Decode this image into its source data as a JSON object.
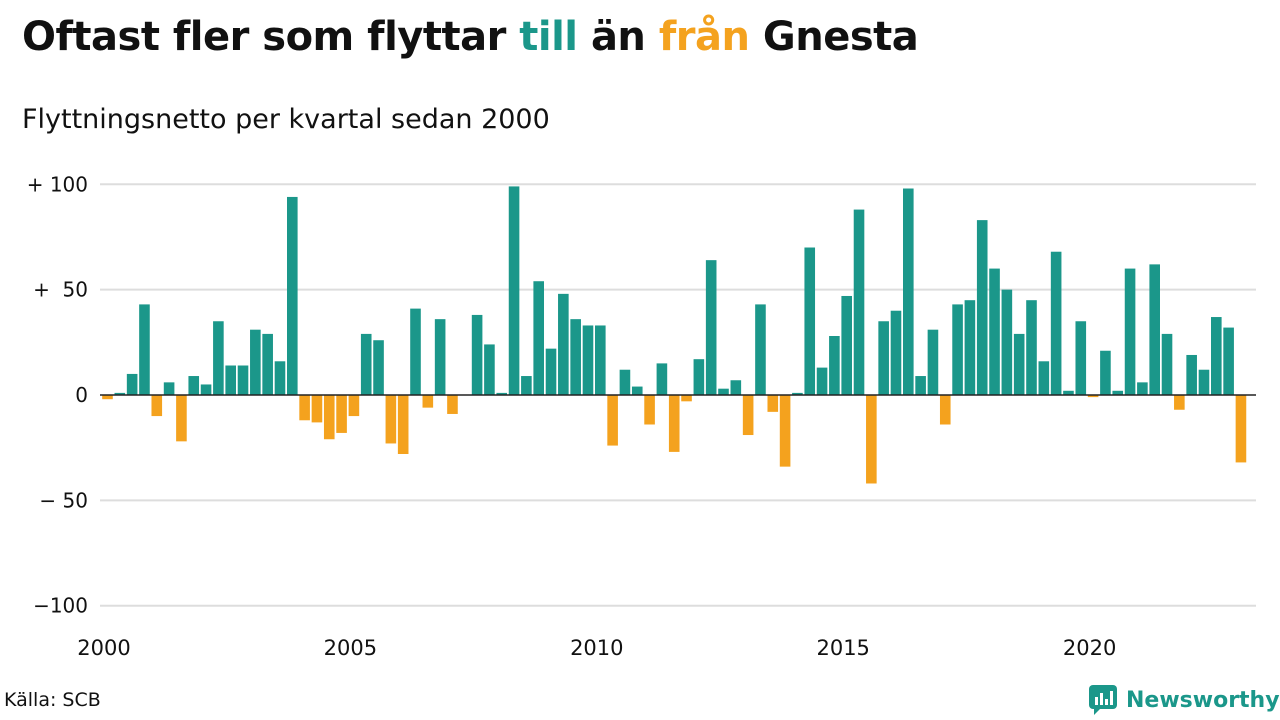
{
  "title": {
    "before": "Oftast fler som flyttar ",
    "word_in": "till",
    "middle": " än ",
    "word_out": "från",
    "after": " Gnesta"
  },
  "subtitle": "Flyttningsnetto per kvartal sedan 2000",
  "source": "Källa: SCB",
  "brand": {
    "name": "Newsworthy",
    "icon": "newsworthy-logo-icon"
  },
  "colors": {
    "in": "#1b978a",
    "out": "#f4a21e",
    "grid": "#dddddd",
    "text": "#111111"
  },
  "chart_data": {
    "type": "bar",
    "x_unit": "quarter",
    "start": "2000 Q1",
    "y_ticks": [
      100,
      50,
      0,
      -50,
      -100
    ],
    "y_tick_labels": [
      "+ 100",
      "+  50",
      "0",
      "− 50",
      "−100"
    ],
    "ylim": [
      -100,
      100
    ],
    "x_ticks": [
      "2000",
      "2005",
      "2010",
      "2015",
      "2020"
    ],
    "grid": true,
    "values": [
      -2,
      1,
      10,
      43,
      -10,
      6,
      -22,
      9,
      5,
      35,
      14,
      14,
      31,
      29,
      16,
      94,
      -12,
      -13,
      -21,
      -18,
      -10,
      29,
      26,
      -23,
      -28,
      41,
      -6,
      36,
      -9,
      0,
      38,
      24,
      1,
      99,
      9,
      54,
      22,
      48,
      36,
      33,
      33,
      -24,
      12,
      4,
      -14,
      15,
      -27,
      -3,
      17,
      64,
      3,
      7,
      -19,
      43,
      -8,
      -34,
      1,
      70,
      13,
      28,
      47,
      88,
      -42,
      35,
      40,
      98,
      9,
      31,
      -14,
      43,
      45,
      83,
      60,
      50,
      29,
      45,
      16,
      68,
      2,
      35,
      -1,
      21,
      2,
      60,
      6,
      62,
      29,
      -7,
      19,
      12,
      37,
      32,
      -32
    ]
  }
}
